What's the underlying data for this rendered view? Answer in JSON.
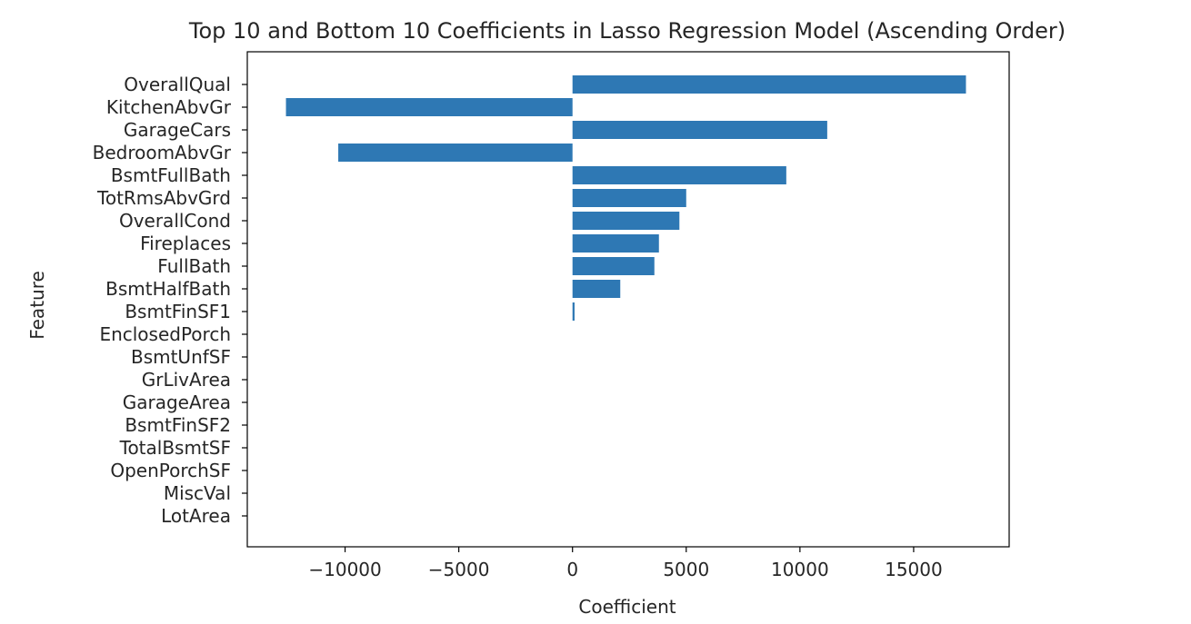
{
  "chart_data": {
    "type": "bar",
    "orientation": "horizontal",
    "title": "Top 10 and Bottom 10 Coefficients in Lasso Regression Model (Ascending Order)",
    "xlabel": "Coefficient",
    "ylabel": "Feature",
    "xlim": [
      -14300,
      19200
    ],
    "xticks": [
      -10000,
      -5000,
      0,
      5000,
      10000,
      15000
    ],
    "xtick_labels": [
      "−10000",
      "−5000",
      "0",
      "5000",
      "10000",
      "15000"
    ],
    "grid": false,
    "bar_color": "#2e78b4",
    "categories": [
      "OverallQual",
      "KitchenAbvGr",
      "GarageCars",
      "BedroomAbvGr",
      "BsmtFullBath",
      "TotRmsAbvGrd",
      "OverallCond",
      "Fireplaces",
      "FullBath",
      "BsmtHalfBath",
      "BsmtFinSF1",
      "EnclosedPorch",
      "BsmtUnfSF",
      "GrLivArea",
      "GarageArea",
      "BsmtFinSF2",
      "TotalBsmtSF",
      "OpenPorchSF",
      "MiscVal",
      "LotArea"
    ],
    "values": [
      17300,
      -12600,
      11200,
      -10300,
      9400,
      5000,
      4700,
      3800,
      3600,
      2100,
      90,
      0,
      0,
      0,
      0,
      0,
      0,
      0,
      0,
      0
    ]
  }
}
